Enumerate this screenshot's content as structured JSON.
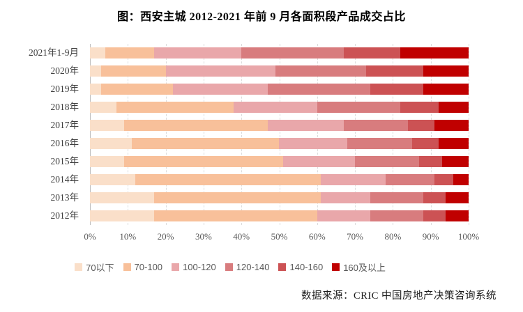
{
  "title": "图：西安主城 2012-2021 年前 9 月各面积段产品成交占比",
  "source": "数据来源：CRIC 中国房地产决策咨询系统",
  "chart_data": {
    "type": "bar",
    "orientation": "horizontal",
    "stacked": true,
    "unit": "percent",
    "title": "图：西安主城 2012-2021 年前 9 月各面积段产品成交占比",
    "categories": [
      "2021年1-9月",
      "2020年",
      "2019年",
      "2018年",
      "2017年",
      "2016年",
      "2015年",
      "2014年",
      "2013年",
      "2012年"
    ],
    "series": [
      {
        "name": "70以下",
        "color": "#FADFC9",
        "values": [
          4,
          3,
          3,
          7,
          9,
          11,
          9,
          12,
          17,
          17
        ]
      },
      {
        "name": "70-100",
        "color": "#F8C09A",
        "values": [
          13,
          17,
          19,
          31,
          38,
          39,
          42,
          49,
          44,
          43
        ]
      },
      {
        "name": "100-120",
        "color": "#E9A7AA",
        "values": [
          23,
          29,
          25,
          22,
          20,
          18,
          19,
          17,
          13,
          14
        ]
      },
      {
        "name": "120-140",
        "color": "#D87C7E",
        "values": [
          27,
          24,
          27,
          22,
          17,
          17,
          17,
          13,
          14,
          14
        ]
      },
      {
        "name": "140-160",
        "color": "#CC5254",
        "values": [
          15,
          15,
          14,
          10,
          7,
          7,
          6,
          5,
          6,
          6
        ]
      },
      {
        "name": "160及以上",
        "color": "#C00000",
        "values": [
          18,
          12,
          12,
          8,
          9,
          8,
          7,
          4,
          6,
          6
        ]
      }
    ],
    "x_axis": {
      "min": 0,
      "max": 100,
      "ticks": [
        "0%",
        "10%",
        "20%",
        "30%",
        "40%",
        "50%",
        "60%",
        "70%",
        "80%",
        "90%",
        "100%"
      ]
    },
    "legend_position": "bottom",
    "grid": true
  }
}
